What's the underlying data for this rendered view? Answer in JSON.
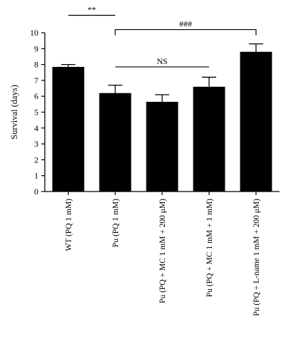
{
  "chart_data": {
    "type": "bar",
    "title": "",
    "xlabel": "",
    "ylabel": "Survival (days)",
    "ylim": [
      0,
      10
    ],
    "yticks": [
      0,
      1,
      2,
      3,
      4,
      5,
      6,
      7,
      8,
      9,
      10
    ],
    "grid": false,
    "bar_color": "#000000",
    "categories": [
      "WT (PQ 1 mM)",
      "Pu (PQ 1 mM)",
      "Pu (PQ + MC 1 mM + 200 μM)",
      "Pu (PQ + MC 1 mM + 1 mM)",
      "Pu (PQ + L-name 1 mM + 200 μM)"
    ],
    "values": [
      7.85,
      6.2,
      5.65,
      6.6,
      8.8
    ],
    "errors": [
      0.15,
      0.5,
      0.45,
      0.6,
      0.5
    ],
    "annotations": [
      {
        "label": "**",
        "type": "line",
        "from_category": 0,
        "to_category": 1,
        "y": 11.1
      },
      {
        "label": "###",
        "type": "bracket",
        "from_category": 1,
        "to_category": 4,
        "y": 10.2
      },
      {
        "label": "NS",
        "type": "line",
        "from_category": 1,
        "to_category": 3,
        "y": 7.85
      }
    ]
  }
}
